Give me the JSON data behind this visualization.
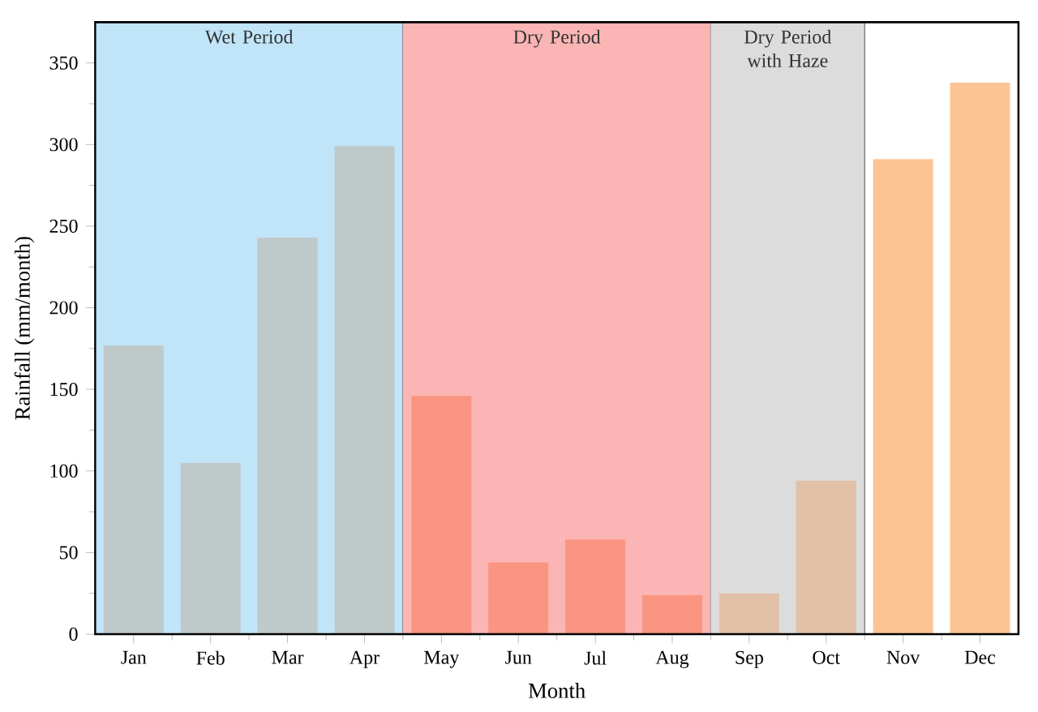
{
  "chart_data": {
    "type": "bar",
    "xlabel": "Month",
    "ylabel": "Rainfall (mm/month)",
    "categories": [
      "Jan",
      "Feb",
      "Mar",
      "Apr",
      "May",
      "Jun",
      "Jul",
      "Aug",
      "Sep",
      "Oct",
      "Nov",
      "Dec"
    ],
    "values": [
      177,
      105,
      243,
      299,
      146,
      44,
      58,
      24,
      25,
      94,
      291,
      338
    ],
    "colors": [
      "#c0c9c9",
      "#c0c9c9",
      "#c0c9c9",
      "#c0c9c9",
      "#f99580",
      "#f99580",
      "#f99580",
      "#f99580",
      "#e2c0a8",
      "#e2c0a8",
      "#fcc495",
      "#fcc495"
    ],
    "ylim": [
      0,
      375
    ],
    "yticks": [
      0,
      50,
      100,
      150,
      200,
      250,
      300,
      350
    ],
    "bands": [
      {
        "axis": "x",
        "from": "Jan",
        "to": "Apr",
        "label": "Wet Period",
        "color": "#c0e4f8"
      },
      {
        "axis": "x",
        "from": "May",
        "to": "Aug",
        "label": "Dry Period",
        "color": "#fbb5b5"
      },
      {
        "axis": "x",
        "from": "Sep",
        "to": "Oct",
        "label": "Dry Period with Haze",
        "color": "#dcdcdc"
      }
    ]
  }
}
